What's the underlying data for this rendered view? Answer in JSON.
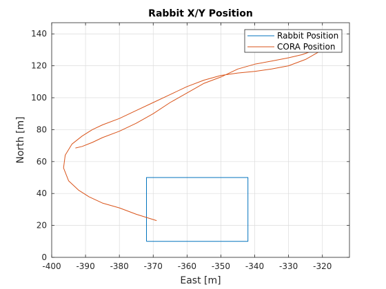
{
  "chart_data": {
    "type": "line",
    "title": "Rabbit X/Y Position",
    "xlabel": "East [m]",
    "ylabel": "North [m]",
    "xlim": [
      -400,
      -312
    ],
    "ylim": [
      0,
      147
    ],
    "xticks": [
      -400,
      -390,
      -380,
      -370,
      -360,
      -350,
      -340,
      -330,
      -320
    ],
    "yticks": [
      0,
      20,
      40,
      60,
      80,
      100,
      120,
      140
    ],
    "grid": true,
    "legend_position": "top-right",
    "series": [
      {
        "name": "Rabbit Position",
        "color": "#0072BD",
        "x": [
          -372,
          -342,
          -342,
          -372,
          -372
        ],
        "y": [
          10,
          10,
          50,
          50,
          10
        ]
      },
      {
        "name": "CORA Position",
        "color": "#D95319",
        "x": [
          -369,
          -375,
          -380,
          -385,
          -389,
          -392,
          -395,
          -396.5,
          -396,
          -394,
          -391,
          -388,
          -385,
          -380,
          -375,
          -370,
          -365,
          -360,
          -355,
          -350,
          -345,
          -340,
          -335,
          -330,
          -325,
          -320,
          -318,
          -322,
          -326,
          -330,
          -335,
          -340,
          -345,
          -350,
          -355,
          -360,
          -365,
          -370,
          -375,
          -380,
          -385,
          -388,
          -391,
          -393
        ],
        "y": [
          23,
          27,
          31,
          34,
          38,
          42,
          48,
          56,
          64,
          71,
          76,
          80,
          83,
          87,
          92,
          97,
          102,
          107,
          111,
          114,
          115.5,
          116.5,
          118,
          120,
          124,
          130,
          133,
          130,
          127,
          125,
          123,
          121,
          118,
          113,
          109,
          103,
          97,
          90,
          84,
          79,
          75,
          72,
          69.5,
          68.5
        ]
      }
    ]
  }
}
